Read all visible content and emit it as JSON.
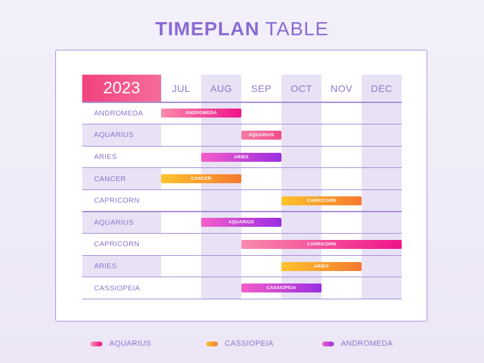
{
  "title": {
    "bold": "TIMEPLAN",
    "rest": " TABLE"
  },
  "year": "2023",
  "months": [
    "JUL",
    "AUG",
    "SEP",
    "OCT",
    "NOV",
    "DEC"
  ],
  "rows": [
    {
      "label": "ANDROMEDA",
      "bar": {
        "label": "ANDROMEDA",
        "start": 0,
        "end": 2,
        "style": "pink"
      }
    },
    {
      "label": "AQUARIUS",
      "bar": {
        "label": "AQUARIUS",
        "start": 2,
        "end": 3,
        "style": "pink2"
      }
    },
    {
      "label": "ARIES",
      "bar": {
        "label": "ARIES",
        "start": 1,
        "end": 3,
        "style": "purple"
      }
    },
    {
      "label": "CANCER",
      "bar": {
        "label": "CANCER",
        "start": 0,
        "end": 2,
        "style": "orange"
      }
    },
    {
      "label": "CAPRICORN",
      "bar": {
        "label": "CAPRICORN",
        "start": 3,
        "end": 5,
        "style": "orange"
      }
    },
    {
      "label": "AQUARIUS",
      "bar": {
        "label": "AQUARIUS",
        "start": 1,
        "end": 3,
        "style": "purple"
      }
    },
    {
      "label": "CAPRICORN",
      "bar": {
        "label": "CAPRICORN",
        "start": 2,
        "end": 6,
        "style": "pink"
      }
    },
    {
      "label": "ARIES",
      "bar": {
        "label": "ARIES",
        "start": 3,
        "end": 5,
        "style": "orange"
      }
    },
    {
      "label": "CASSIOPEIA",
      "bar": {
        "label": "CASSIOPEIA",
        "start": 2,
        "end": 4,
        "style": "purple"
      }
    }
  ],
  "legend": [
    {
      "label": "AQUARIUS",
      "style": "pink"
    },
    {
      "label": "CASSIOPEIA",
      "style": "orange"
    },
    {
      "label": "ANDROMEDA",
      "style": "purple"
    }
  ]
}
